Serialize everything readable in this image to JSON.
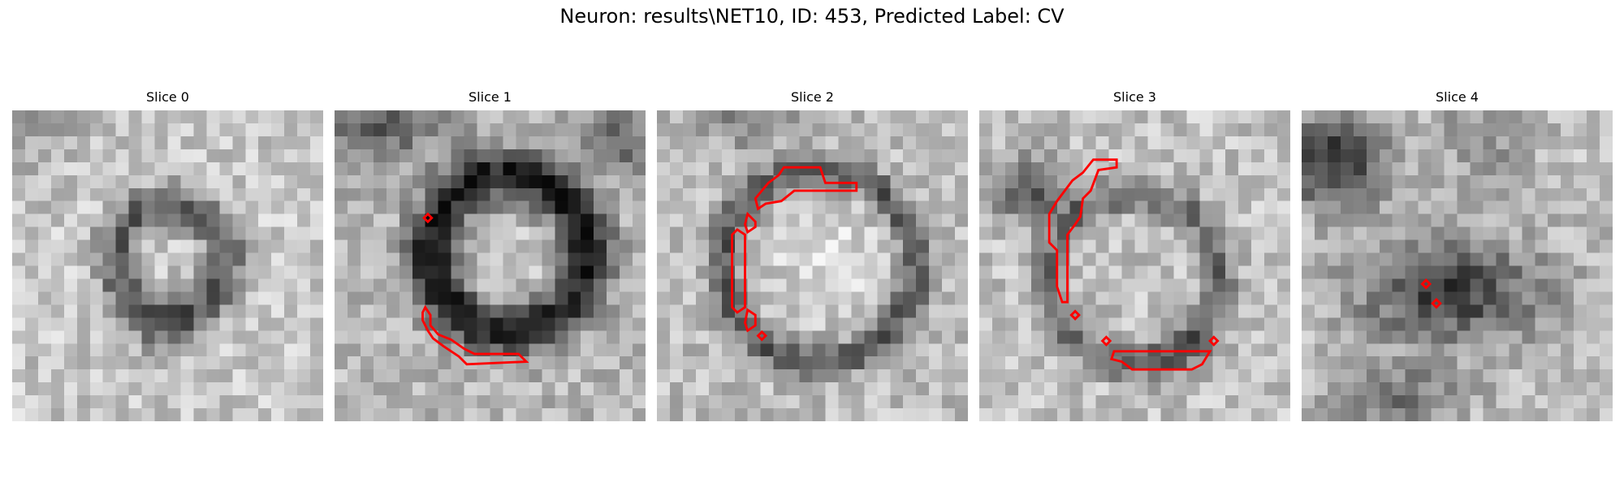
{
  "figure": {
    "title": "Neuron: results\\NET10, ID: 453, Predicted Label: CV"
  },
  "panels": [
    {
      "title": "Slice 0",
      "scene": "dark ring of cells around a brighter nucleus, light textured background",
      "contour_color": "#ff0000",
      "contours": 0
    },
    {
      "title": "Slice 1",
      "scene": "thick dark ring around nucleus with red contour on lower-left edge",
      "contour_color": "#ff0000",
      "contours": 2
    },
    {
      "title": "Slice 2",
      "scene": "round cell with dark boundary, red contours along upper and left edge",
      "contour_color": "#ff0000",
      "contours": 5
    },
    {
      "title": "Slice 3",
      "scene": "cell with red contours on upper-left and bottom edges",
      "contour_color": "#ff0000",
      "contours": 4
    },
    {
      "title": "Slice 4",
      "scene": "dark blobs with two small red markers at center",
      "contour_color": "#ff0000",
      "contours": 2
    }
  ]
}
